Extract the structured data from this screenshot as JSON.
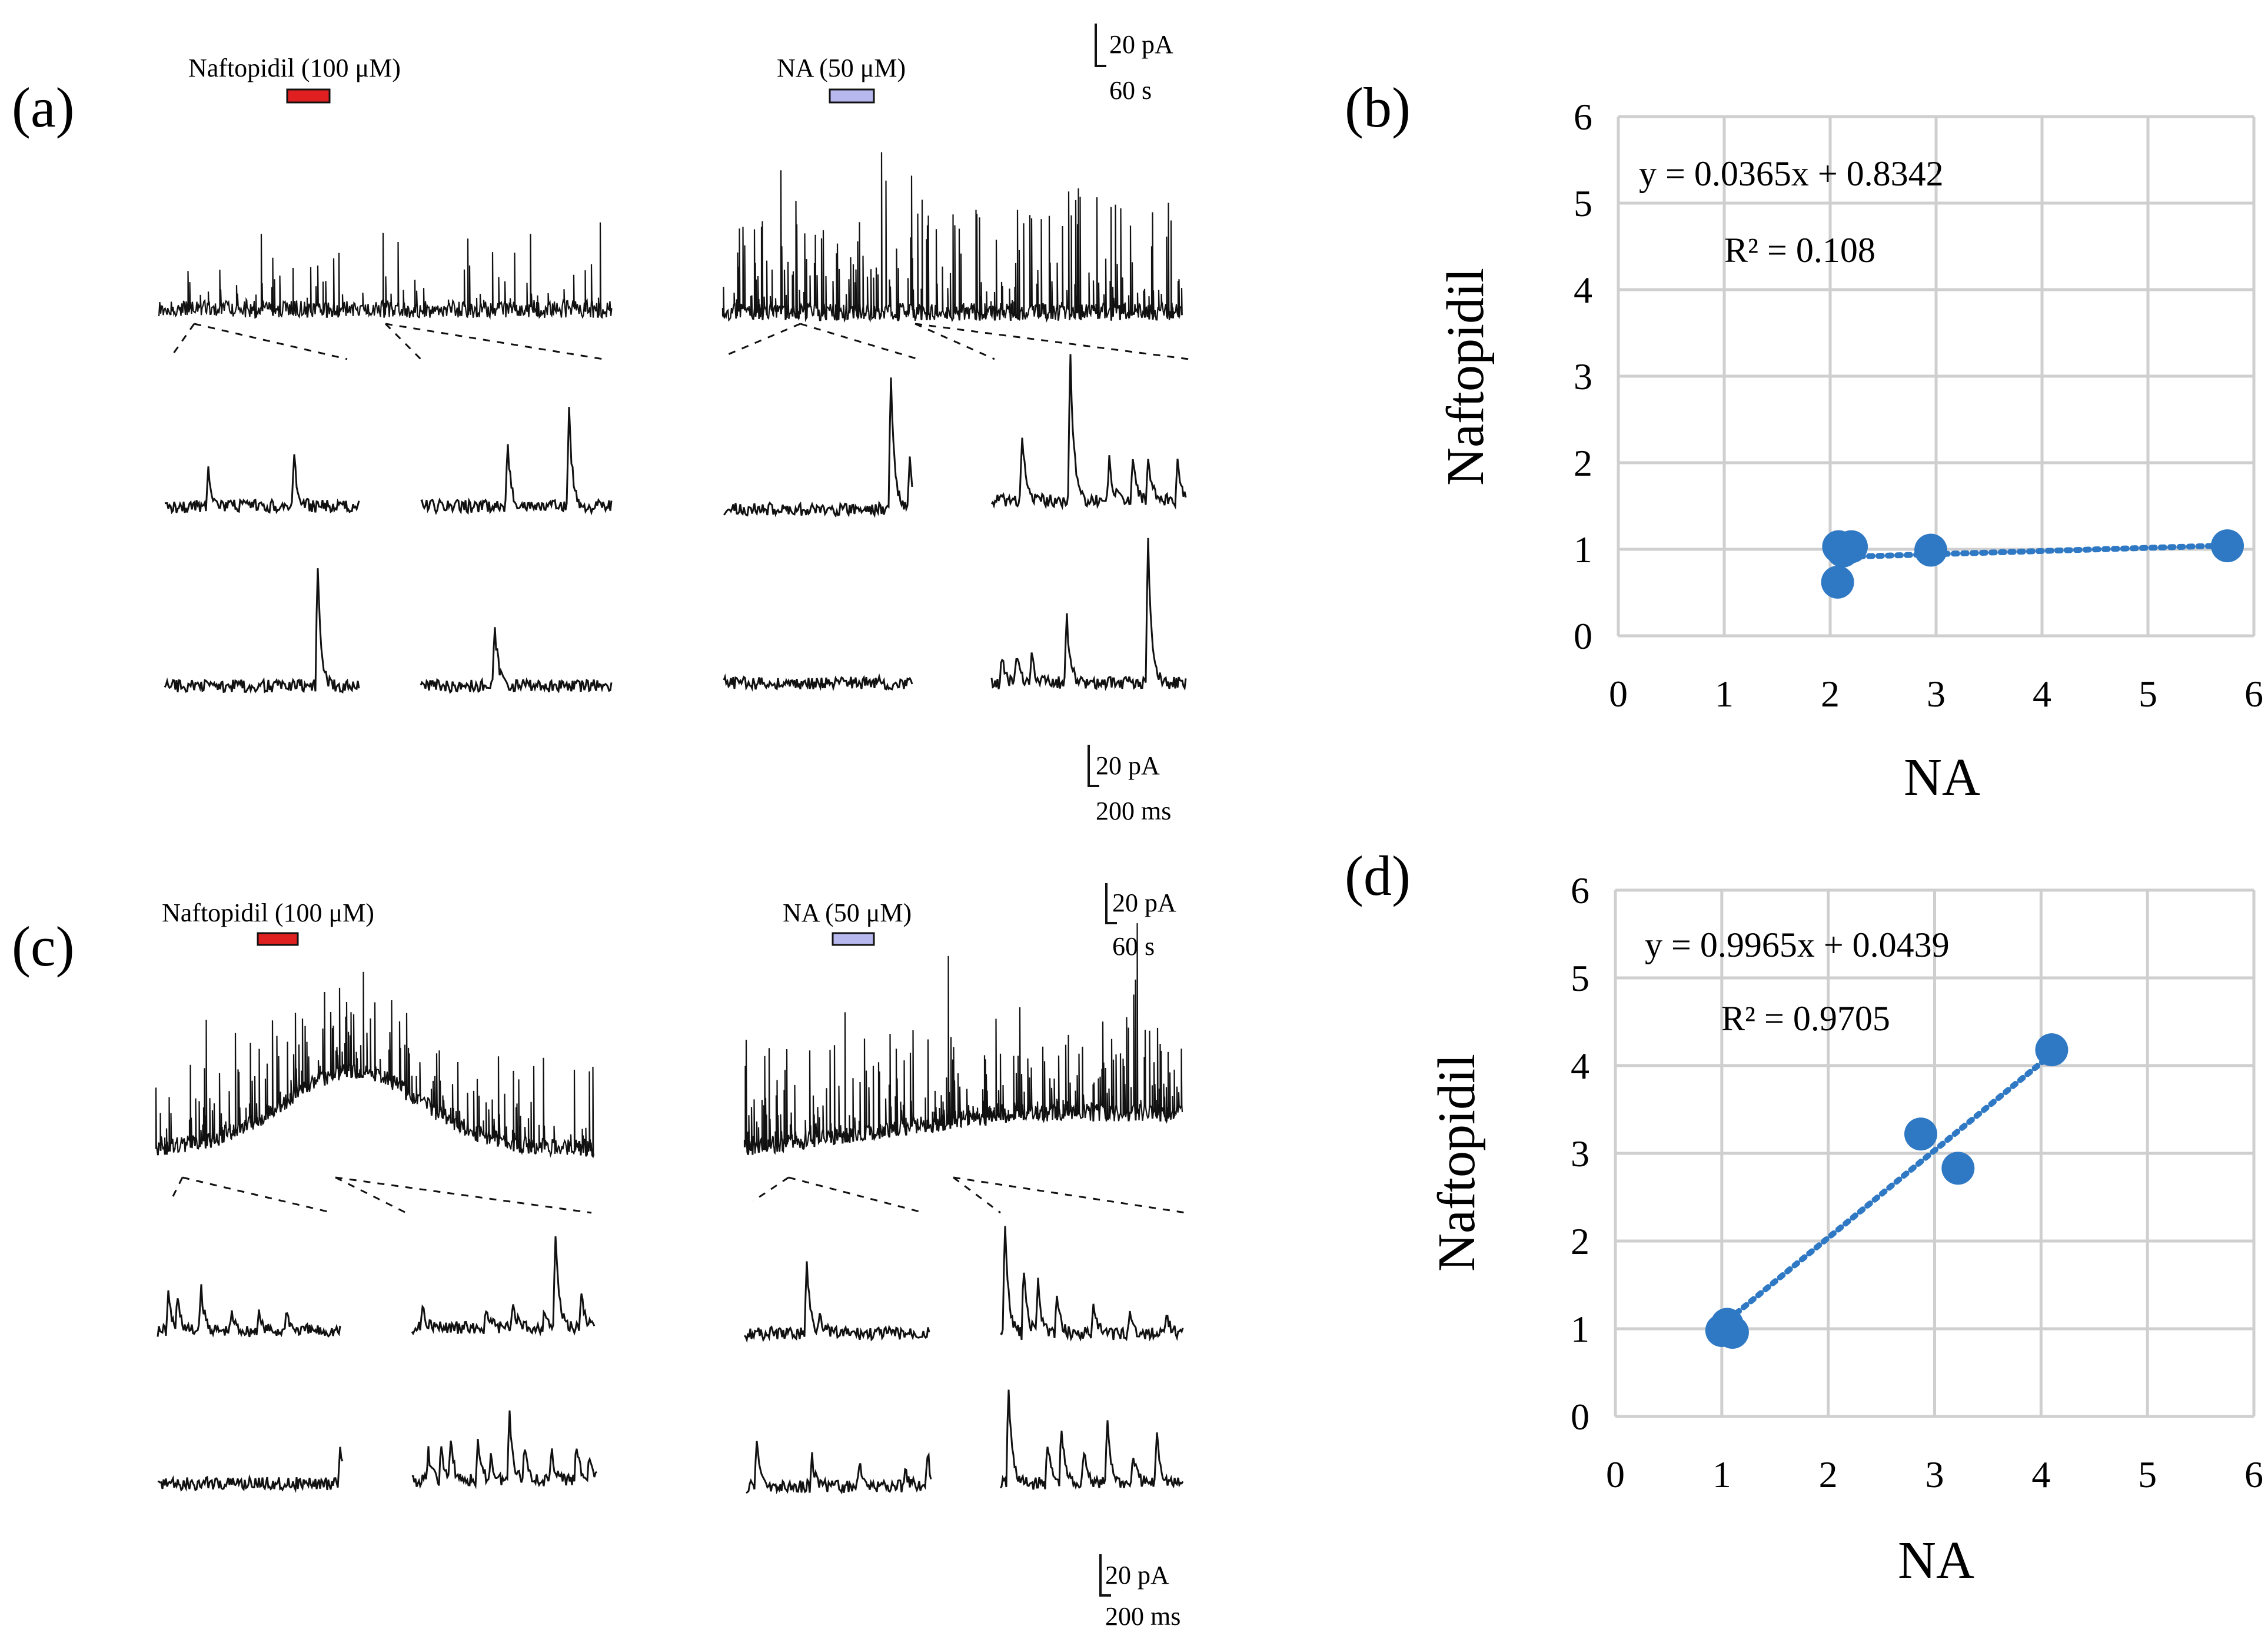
{
  "colors": {
    "trace": "#111111",
    "naftopidil_bar": "#e02020",
    "na_bar": "#b7b8ee",
    "grid": "#cfcfcf",
    "point": "#2f78c4",
    "trendline": "#2f78c4"
  },
  "panel_a": {
    "label": "(a)",
    "naftopidil_label": "Naftopidil (100 μM)",
    "na_label": "NA (50 μM)",
    "scale_top": {
      "amplitude": "20 pA",
      "time": "60 s"
    },
    "scale_bottom": {
      "amplitude": "20 pA",
      "time": "200 ms"
    }
  },
  "panel_c": {
    "label": "(c)",
    "naftopidil_label": "Naftopidil (100 μM)",
    "na_label": "NA (50 μM)",
    "scale_top": {
      "amplitude": "20 pA",
      "time": "60 s"
    },
    "scale_bottom": {
      "amplitude": "20 pA",
      "time": "200 ms"
    }
  },
  "chart_data": [
    {
      "panel": "(b)",
      "type": "scatter",
      "xlabel": "NA",
      "ylabel": "Naftopidil",
      "xlim": [
        0,
        6
      ],
      "ylim": [
        0,
        6
      ],
      "xticks": [
        "0",
        "1",
        "2",
        "3",
        "4",
        "5",
        "6"
      ],
      "yticks": [
        "0",
        "1",
        "2",
        "3",
        "4",
        "5",
        "6"
      ],
      "grid": true,
      "equation": "y = 0.0365x + 0.8342",
      "r_squared": "R² = 0.108",
      "trendline": {
        "slope": 0.0365,
        "intercept": 0.8342,
        "x_range": [
          2.1,
          5.75
        ]
      },
      "points": [
        {
          "x": 2.07,
          "y": 0.62
        },
        {
          "x": 2.08,
          "y": 1.03
        },
        {
          "x": 2.12,
          "y": 0.98
        },
        {
          "x": 2.2,
          "y": 1.03
        },
        {
          "x": 2.95,
          "y": 0.99
        },
        {
          "x": 5.75,
          "y": 1.04
        }
      ]
    },
    {
      "panel": "(d)",
      "type": "scatter",
      "xlabel": "NA",
      "ylabel": "Naftopidil",
      "xlim": [
        0,
        6
      ],
      "ylim": [
        0,
        6
      ],
      "xticks": [
        "0",
        "1",
        "2",
        "3",
        "4",
        "5",
        "6"
      ],
      "yticks": [
        "0",
        "1",
        "2",
        "3",
        "4",
        "5",
        "6"
      ],
      "grid": true,
      "equation": "y = 0.9965x + 0.0439",
      "r_squared": "R² = 0.9705",
      "trendline": {
        "slope": 0.9965,
        "intercept": 0.0439,
        "x_range": [
          1.0,
          4.1
        ]
      },
      "points": [
        {
          "x": 1.0,
          "y": 0.98
        },
        {
          "x": 1.05,
          "y": 1.05
        },
        {
          "x": 1.1,
          "y": 0.96
        },
        {
          "x": 2.87,
          "y": 3.22
        },
        {
          "x": 3.22,
          "y": 2.83
        },
        {
          "x": 4.1,
          "y": 4.18
        }
      ]
    }
  ]
}
